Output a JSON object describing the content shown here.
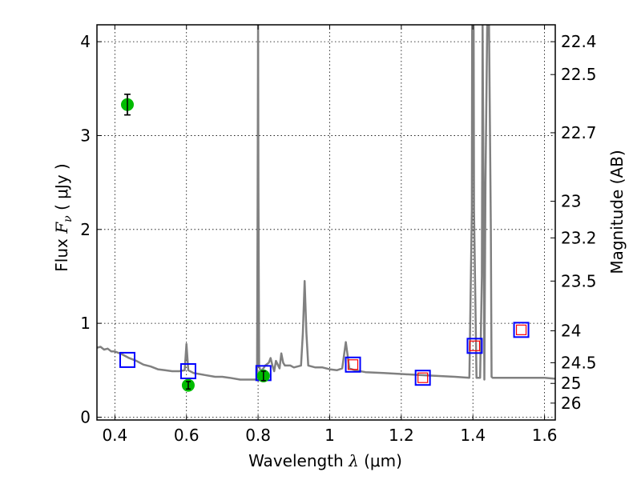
{
  "chart_data": {
    "type": "line",
    "xlabel": "Wavelength",
    "xlabel_symbol": "λ",
    "xlabel_unit": "(μm)",
    "ylabel": "Flux",
    "ylabel_symbol": "F",
    "ylabel_sub": "ν",
    "ylabel_unit": "( μJy )",
    "y2label": "Magnitude (AB)",
    "xlim": [
      0.35,
      1.63
    ],
    "ylim": [
      -0.03,
      4.18
    ],
    "grid": true,
    "x_ticks": [
      0.4,
      0.6,
      0.8,
      1.0,
      1.2,
      1.4,
      1.6
    ],
    "x_tick_labels": [
      "0.4",
      "0.6",
      "0.8",
      "1",
      "1.2",
      "1.4",
      "1.6"
    ],
    "y_ticks": [
      0,
      1,
      2,
      3,
      4
    ],
    "y_tick_labels": [
      "0",
      "1",
      "2",
      "3",
      "4"
    ],
    "y2_tick_labels": [
      "22.4",
      "22.5",
      "22.7",
      "23",
      "23.2",
      "23.5",
      "24",
      "24.5",
      "25",
      "26"
    ],
    "y2_tick_flux": [
      4.0,
      3.65,
      3.03,
      2.3,
      1.91,
      1.45,
      0.92,
      0.58,
      0.36,
      0.15
    ],
    "series": [
      {
        "style": "spectrum",
        "color": "#808080",
        "x": [
          0.35,
          0.36,
          0.37,
          0.38,
          0.39,
          0.4,
          0.42,
          0.44,
          0.46,
          0.48,
          0.5,
          0.52,
          0.54,
          0.56,
          0.58,
          0.595,
          0.6,
          0.605,
          0.62,
          0.65,
          0.68,
          0.7,
          0.72,
          0.75,
          0.78,
          0.797,
          0.799,
          0.8,
          0.801,
          0.803,
          0.806,
          0.81,
          0.815,
          0.82,
          0.83,
          0.835,
          0.84,
          0.845,
          0.85,
          0.86,
          0.865,
          0.87,
          0.875,
          0.88,
          0.89,
          0.9,
          0.92,
          0.925,
          0.93,
          0.935,
          0.94,
          0.96,
          0.98,
          1.0,
          1.02,
          1.035,
          1.045,
          1.055,
          1.07,
          1.1,
          1.15,
          1.2,
          1.25,
          1.3,
          1.35,
          1.39,
          1.397,
          1.398,
          1.402,
          1.403,
          1.41,
          1.42,
          1.425,
          1.427,
          1.43,
          1.432,
          1.435,
          1.44,
          1.445,
          1.45,
          1.452,
          1.455,
          1.47,
          1.5,
          1.55,
          1.6,
          1.63
        ],
        "y": [
          0.74,
          0.75,
          0.72,
          0.73,
          0.7,
          0.7,
          0.67,
          0.63,
          0.6,
          0.56,
          0.54,
          0.51,
          0.5,
          0.49,
          0.49,
          0.5,
          0.78,
          0.5,
          0.47,
          0.45,
          0.43,
          0.43,
          0.42,
          0.4,
          0.4,
          0.4,
          2.5,
          4.2,
          2.5,
          0.55,
          0.5,
          0.5,
          0.52,
          0.55,
          0.58,
          0.63,
          0.55,
          0.49,
          0.6,
          0.52,
          0.68,
          0.58,
          0.55,
          0.55,
          0.55,
          0.53,
          0.55,
          0.9,
          1.45,
          0.9,
          0.55,
          0.53,
          0.53,
          0.51,
          0.5,
          0.52,
          0.8,
          0.52,
          0.5,
          0.48,
          0.47,
          0.46,
          0.45,
          0.44,
          0.43,
          0.42,
          2.2,
          4.2,
          4.2,
          2.2,
          0.42,
          0.42,
          1.5,
          4.2,
          2.2,
          0.4,
          2.5,
          4.2,
          4.2,
          2.0,
          0.43,
          0.42,
          0.42,
          0.42,
          0.42,
          0.42,
          0.41
        ]
      },
      {
        "style": "blue-squares",
        "color": "#0000ff",
        "x": [
          0.435,
          0.605,
          0.815,
          1.065,
          1.26,
          1.405,
          1.535
        ],
        "y": [
          0.61,
          0.49,
          0.47,
          0.56,
          0.42,
          0.76,
          0.93
        ]
      },
      {
        "style": "red-squares",
        "color": "#ff0000",
        "x": [
          1.065,
          1.26,
          1.405,
          1.535
        ],
        "y": [
          0.56,
          0.42,
          0.76,
          0.93
        ]
      },
      {
        "style": "green-points",
        "color": "#00bb00",
        "x": [
          0.435,
          0.605,
          0.815
        ],
        "y": [
          3.33,
          0.34,
          0.44
        ],
        "yerr": [
          0.11,
          0.04,
          0.05
        ]
      }
    ]
  }
}
